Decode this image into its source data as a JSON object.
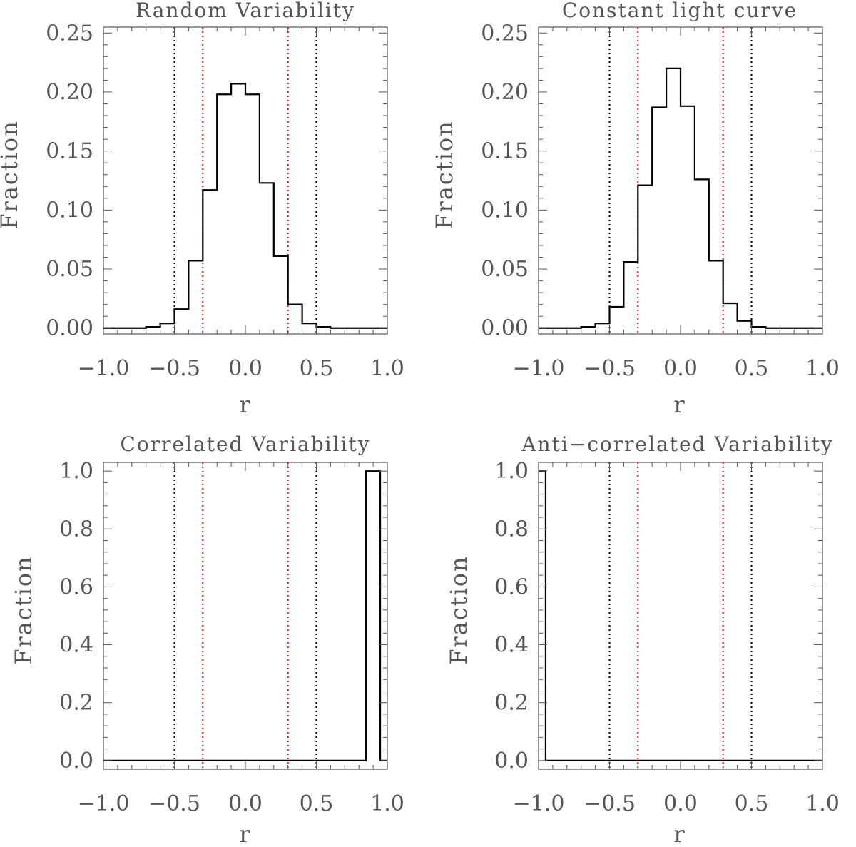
{
  "chart_data": [
    {
      "type": "step-histogram",
      "title": "Random Variability",
      "xlabel": "r",
      "ylabel": "Fraction",
      "xlim": [
        -1.0,
        1.0
      ],
      "ylim": [
        -0.005,
        0.255
      ],
      "xticks": [
        "−1.0",
        "−0.5",
        "0.0",
        "0.5",
        "1.0"
      ],
      "xtick_values": [
        -1.0,
        -0.5,
        0.0,
        0.5,
        1.0
      ],
      "yticks": [
        "0.00",
        "0.05",
        "0.10",
        "0.15",
        "0.20",
        "0.25"
      ],
      "ytick_values": [
        0.0,
        0.05,
        0.1,
        0.15,
        0.2,
        0.25
      ],
      "bin_edges": [
        -1.0,
        -0.9,
        -0.8,
        -0.7,
        -0.6,
        -0.5,
        -0.4,
        -0.3,
        -0.2,
        -0.1,
        0.0,
        0.1,
        0.2,
        0.3,
        0.4,
        0.5,
        0.6,
        0.7,
        0.8,
        0.9,
        1.0
      ],
      "values": [
        0.0,
        0.0,
        0.0,
        0.001,
        0.004,
        0.016,
        0.057,
        0.117,
        0.198,
        0.207,
        0.198,
        0.123,
        0.061,
        0.02,
        0.004,
        0.001,
        0.0,
        0.0,
        0.0,
        0.0
      ],
      "reference_lines": [
        {
          "x": -0.5,
          "color": "#000000",
          "style": "dotted"
        },
        {
          "x": -0.3,
          "color": "#ff0000",
          "style": "dotted"
        },
        {
          "x": 0.3,
          "color": "#ff0000",
          "style": "dotted"
        },
        {
          "x": 0.5,
          "color": "#000000",
          "style": "dotted"
        }
      ]
    },
    {
      "type": "step-histogram",
      "title": "Constant light curve",
      "xlabel": "r",
      "ylabel": "Fraction",
      "xlim": [
        -1.0,
        1.0
      ],
      "ylim": [
        -0.005,
        0.255
      ],
      "xticks": [
        "−1.0",
        "−0.5",
        "0.0",
        "0.5",
        "1.0"
      ],
      "xtick_values": [
        -1.0,
        -0.5,
        0.0,
        0.5,
        1.0
      ],
      "yticks": [
        "0.00",
        "0.05",
        "0.10",
        "0.15",
        "0.20",
        "0.25"
      ],
      "ytick_values": [
        0.0,
        0.05,
        0.1,
        0.15,
        0.2,
        0.25
      ],
      "bin_edges": [
        -1.0,
        -0.9,
        -0.8,
        -0.7,
        -0.6,
        -0.5,
        -0.4,
        -0.3,
        -0.2,
        -0.1,
        0.0,
        0.1,
        0.2,
        0.3,
        0.4,
        0.5,
        0.6,
        0.7,
        0.8,
        0.9,
        1.0
      ],
      "values": [
        0.0,
        0.0,
        0.0,
        0.001,
        0.004,
        0.018,
        0.056,
        0.121,
        0.187,
        0.22,
        0.188,
        0.126,
        0.057,
        0.021,
        0.006,
        0.001,
        0.0,
        0.0,
        0.0,
        0.0
      ],
      "reference_lines": [
        {
          "x": -0.5,
          "color": "#000000",
          "style": "dotted"
        },
        {
          "x": -0.3,
          "color": "#ff0000",
          "style": "dotted"
        },
        {
          "x": 0.3,
          "color": "#ff0000",
          "style": "dotted"
        },
        {
          "x": 0.5,
          "color": "#000000",
          "style": "dotted"
        }
      ]
    },
    {
      "type": "step-histogram",
      "title": "Correlated Variability",
      "xlabel": "r",
      "ylabel": "Fraction",
      "xlim": [
        -1.0,
        1.0
      ],
      "ylim": [
        -0.03,
        1.03
      ],
      "xticks": [
        "−1.0",
        "−0.5",
        "0.0",
        "0.5",
        "1.0"
      ],
      "xtick_values": [
        -1.0,
        -0.5,
        0.0,
        0.5,
        1.0
      ],
      "yticks": [
        "0.0",
        "0.2",
        "0.4",
        "0.6",
        "0.8",
        "1.0"
      ],
      "ytick_values": [
        0.0,
        0.2,
        0.4,
        0.6,
        0.8,
        1.0
      ],
      "bin_edges": [
        -1.0,
        -0.9,
        -0.8,
        -0.7,
        -0.6,
        -0.5,
        -0.4,
        -0.3,
        -0.2,
        -0.1,
        0.0,
        0.1,
        0.2,
        0.3,
        0.4,
        0.5,
        0.6,
        0.7,
        0.8,
        0.85,
        0.95,
        1.0
      ],
      "values": [
        0.0,
        0.0,
        0.0,
        0.0,
        0.0,
        0.0,
        0.0,
        0.0,
        0.0,
        0.0,
        0.0,
        0.0,
        0.0,
        0.0,
        0.0,
        0.0,
        0.0,
        0.0,
        0.0,
        1.0,
        0.0
      ],
      "reference_lines": [
        {
          "x": -0.5,
          "color": "#000000",
          "style": "dotted"
        },
        {
          "x": -0.3,
          "color": "#ff0000",
          "style": "dotted"
        },
        {
          "x": 0.3,
          "color": "#ff0000",
          "style": "dotted"
        },
        {
          "x": 0.5,
          "color": "#000000",
          "style": "dotted"
        }
      ]
    },
    {
      "type": "step-histogram",
      "title": "Anti−correlated Variability",
      "xlabel": "r",
      "ylabel": "Fraction",
      "xlim": [
        -1.0,
        1.0
      ],
      "ylim": [
        -0.03,
        1.03
      ],
      "xticks": [
        "−1.0",
        "−0.5",
        "0.0",
        "0.5",
        "1.0"
      ],
      "xtick_values": [
        -1.0,
        -0.5,
        0.0,
        0.5,
        1.0
      ],
      "yticks": [
        "0.0",
        "0.2",
        "0.4",
        "0.6",
        "0.8",
        "1.0"
      ],
      "ytick_values": [
        0.0,
        0.2,
        0.4,
        0.6,
        0.8,
        1.0
      ],
      "bin_edges": [
        -1.0,
        -0.95,
        -0.9,
        -0.8,
        -0.7,
        -0.6,
        -0.5,
        -0.4,
        -0.3,
        -0.2,
        -0.1,
        0.0,
        0.1,
        0.2,
        0.3,
        0.4,
        0.5,
        0.6,
        0.7,
        0.8,
        0.9,
        1.0
      ],
      "values": [
        1.0,
        0.0,
        0.0,
        0.0,
        0.0,
        0.0,
        0.0,
        0.0,
        0.0,
        0.0,
        0.0,
        0.0,
        0.0,
        0.0,
        0.0,
        0.0,
        0.0,
        0.0,
        0.0,
        0.0,
        0.0
      ],
      "reference_lines": [
        {
          "x": -0.5,
          "color": "#000000",
          "style": "dotted"
        },
        {
          "x": -0.3,
          "color": "#ff0000",
          "style": "dotted"
        },
        {
          "x": 0.3,
          "color": "#ff0000",
          "style": "dotted"
        },
        {
          "x": 0.5,
          "color": "#000000",
          "style": "dotted"
        }
      ]
    }
  ]
}
